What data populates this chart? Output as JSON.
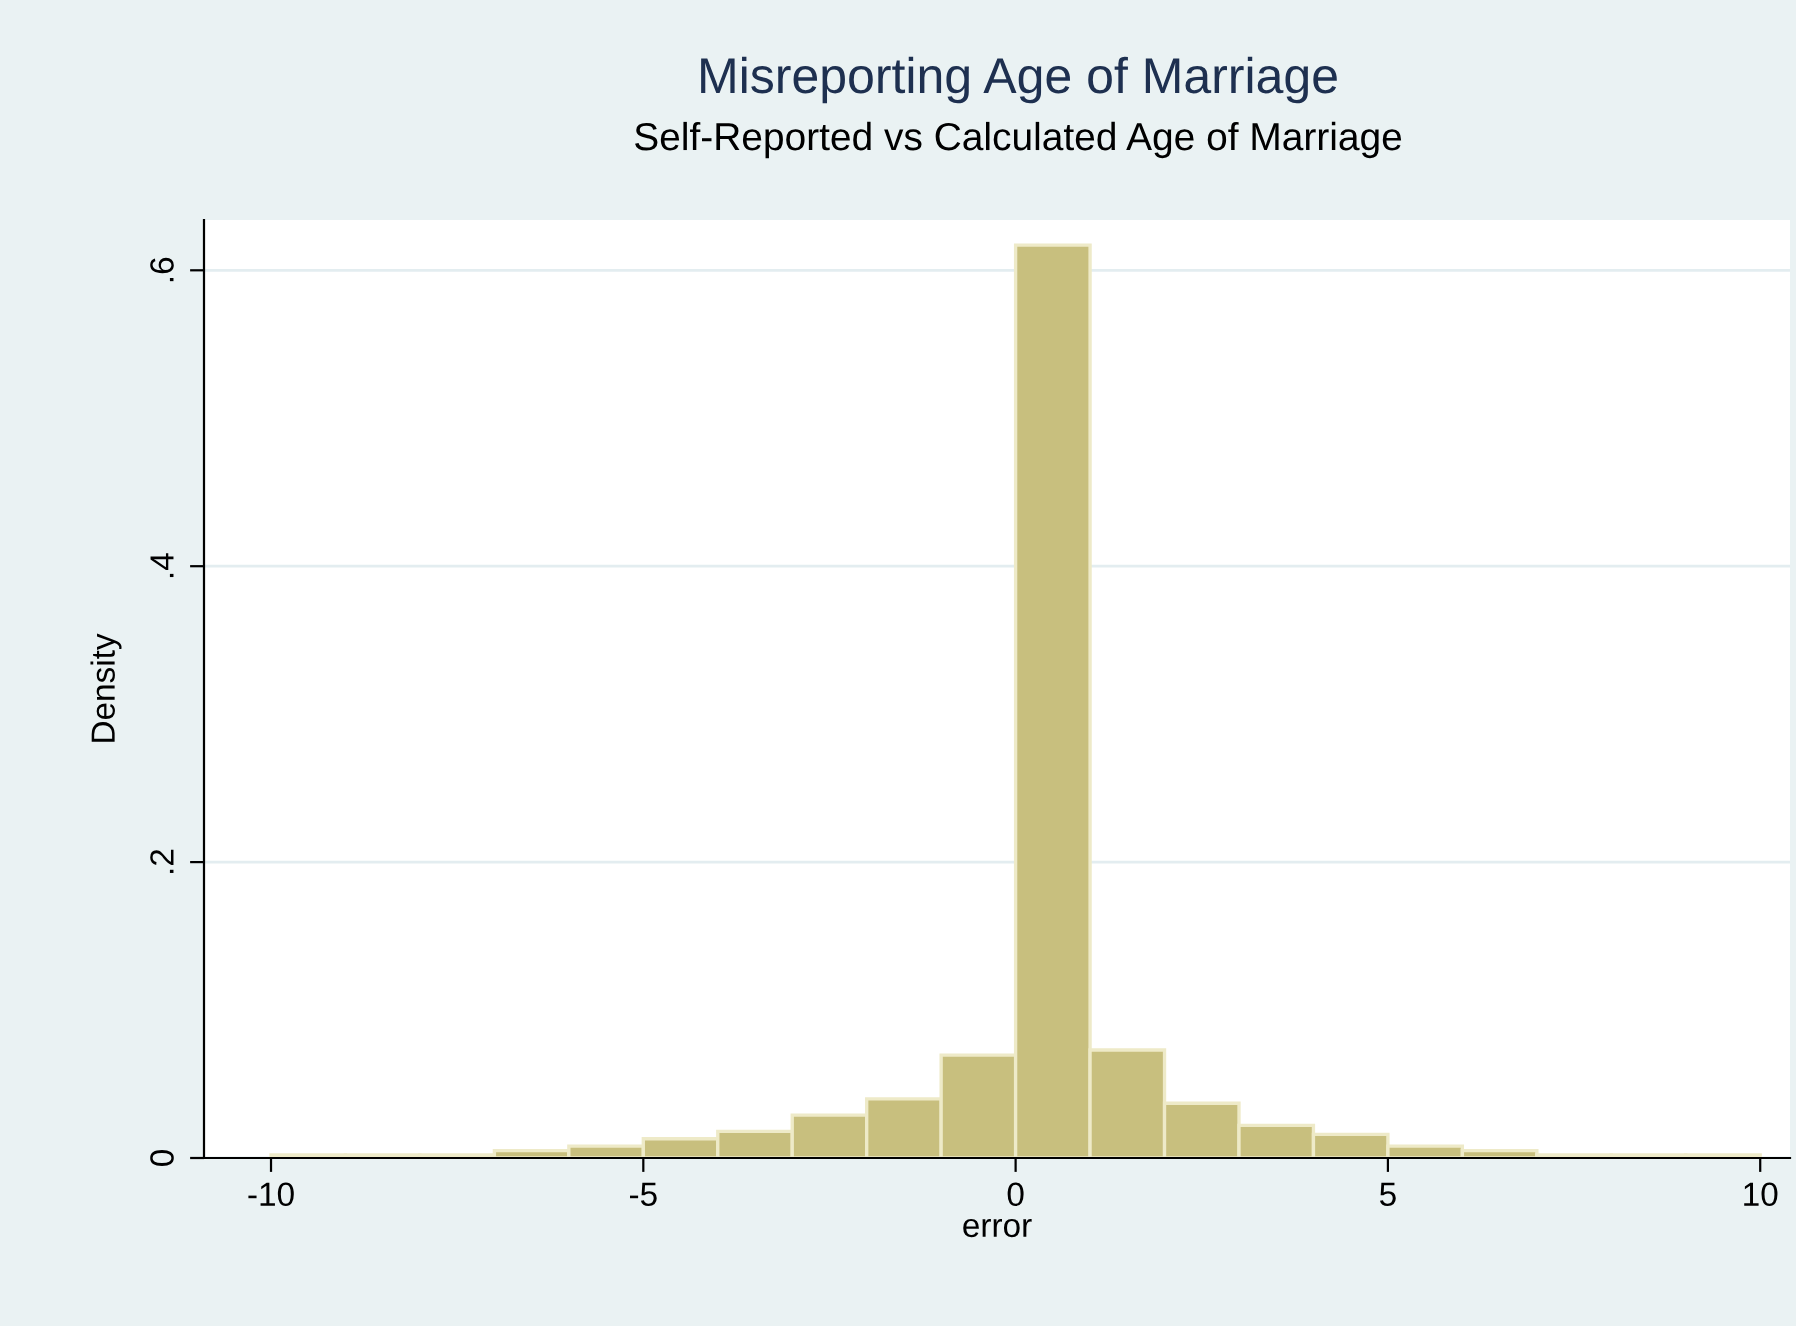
{
  "chart_data": {
    "type": "histogram",
    "title": "Misreporting Age of Marriage",
    "subtitle": "Self-Reported vs Calculated Age of Marriage",
    "xlabel": "error",
    "ylabel": "Density",
    "bins": [
      -10,
      -9,
      -8,
      -7,
      -6,
      -5,
      -4,
      -3,
      -2,
      -1,
      0,
      1,
      2,
      3,
      4,
      5,
      6,
      7,
      8,
      9,
      10
    ],
    "values": [
      0.002,
      0.002,
      0.002,
      0.005,
      0.008,
      0.013,
      0.018,
      0.029,
      0.04,
      0.0695,
      0.617,
      0.073,
      0.037,
      0.022,
      0.016,
      0.008,
      0.005,
      0.002,
      0.002,
      0.002
    ],
    "color": "#c8bf7e",
    "xlim": [
      -10.9,
      10.4
    ],
    "xticks": [
      -10,
      -5,
      0,
      5,
      10
    ],
    "ylim": [
      0,
      0.634
    ],
    "yticks": [
      {
        "value": 0,
        "label": "0"
      },
      {
        "value": 0.2,
        "label": ".2"
      },
      {
        "value": 0.4,
        "label": ".4"
      },
      {
        "value": 0.6,
        "label": ".6"
      }
    ],
    "grid": "y"
  }
}
